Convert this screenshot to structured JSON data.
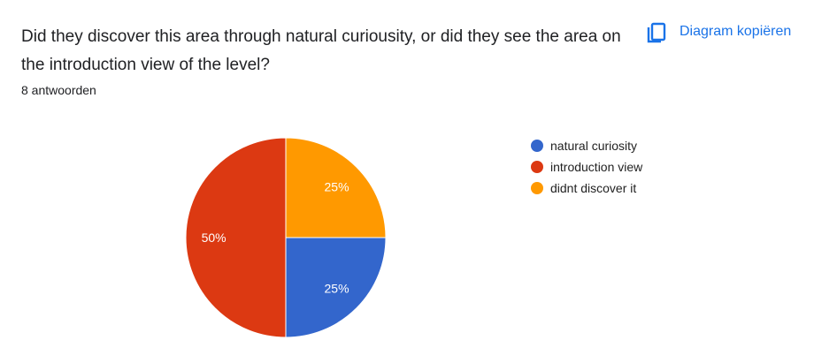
{
  "question": "Did they discover this area through natural curiousity, or did they see the area on the introduction view of the level?",
  "responses": "8 antwoorden",
  "copy_button": {
    "label": "Diagram kopiëren",
    "icon": "copy-icon"
  },
  "chart_data": {
    "type": "pie",
    "categories": [
      "natural curiosity",
      "introduction view",
      "didnt discover it"
    ],
    "values": [
      25,
      50,
      25
    ],
    "labels": [
      "25%",
      "50%",
      "25%"
    ],
    "colors": [
      "#3366cc",
      "#dc3912",
      "#ff9900"
    ],
    "legend": "right"
  }
}
